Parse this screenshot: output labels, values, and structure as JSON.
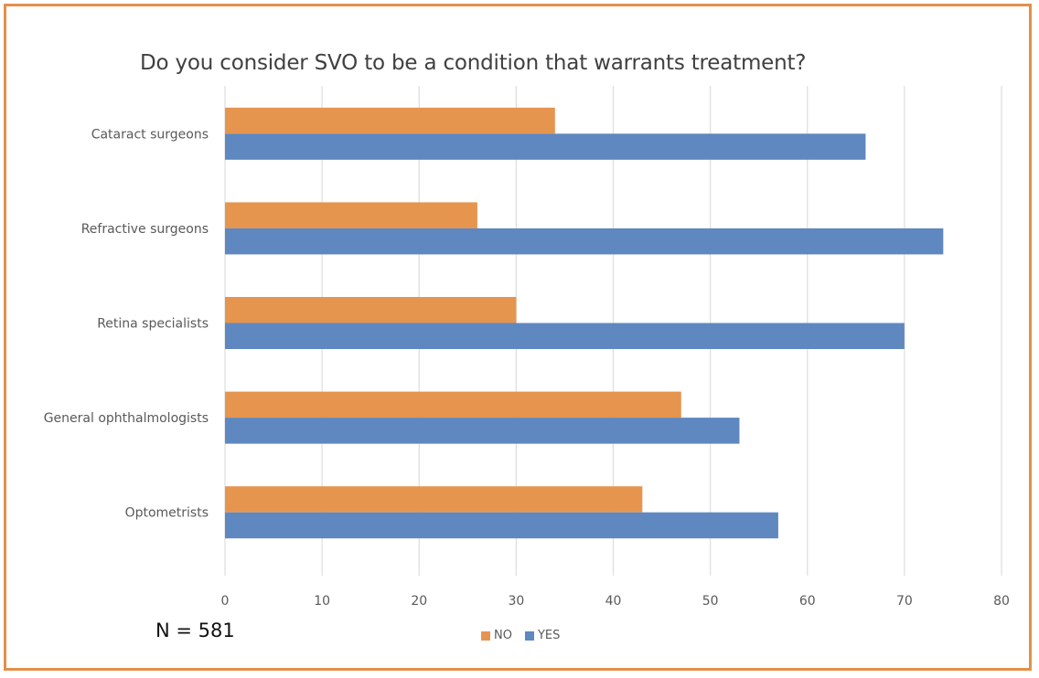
{
  "chart_data": {
    "type": "bar",
    "orientation": "horizontal",
    "title": "Do you consider SVO to be a condition that warrants treatment?",
    "categories": [
      "Cataract surgeons",
      "Refractive surgeons",
      "Retina specialists",
      "General ophthalmologists",
      "Optometrists"
    ],
    "series": [
      {
        "name": "NO",
        "color": "#E6954F",
        "values": [
          34,
          26,
          30,
          47,
          43
        ]
      },
      {
        "name": "YES",
        "color": "#5F87C0",
        "values": [
          66,
          74,
          70,
          53,
          57
        ]
      }
    ],
    "xlabel": "",
    "ylabel": "",
    "xlim": [
      0,
      80
    ],
    "xticks": [
      "0",
      "10",
      "20",
      "30",
      "40",
      "50",
      "60",
      "70",
      "80"
    ],
    "grid": true,
    "legend_position": "bottom",
    "annotation": "N = 581"
  },
  "frame_color": "#E38F4A",
  "gridline_color": "#E0E0E0"
}
